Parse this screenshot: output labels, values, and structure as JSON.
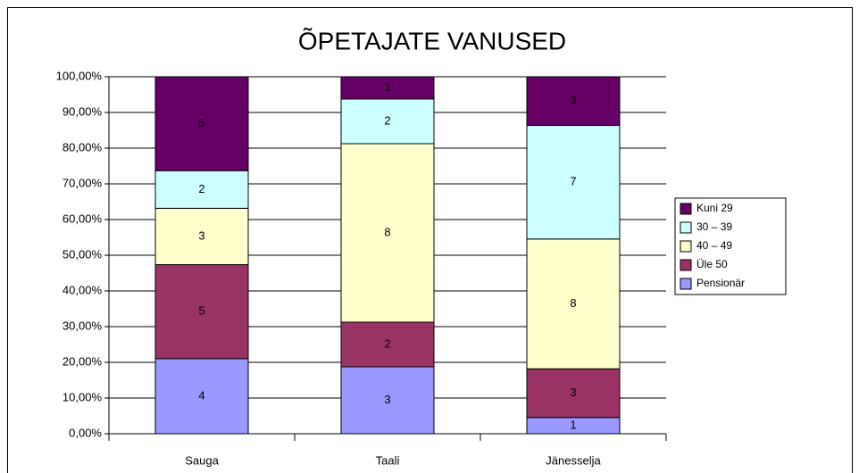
{
  "chart_data": {
    "type": "stacked_percent_bar",
    "title": "ÕPETAJATE VANUSED",
    "categories": [
      "Sauga",
      "Taali",
      "Jänesselja"
    ],
    "series": [
      {
        "name": "Pensionär",
        "color": "#9999ff",
        "values": [
          4,
          3,
          1
        ]
      },
      {
        "name": "Üle 50",
        "color": "#993366",
        "values": [
          5,
          2,
          3
        ]
      },
      {
        "name": "40 – 49",
        "color": "#ffffcc",
        "values": [
          3,
          8,
          8
        ]
      },
      {
        "name": "30 – 39",
        "color": "#ccffff",
        "values": [
          2,
          2,
          7
        ]
      },
      {
        "name": "Kuni 29",
        "color": "#660066",
        "values": [
          5,
          1,
          3
        ]
      }
    ],
    "ylim": [
      0,
      100
    ],
    "yticks": [
      {
        "value": 0,
        "label": "0,00%"
      },
      {
        "value": 10,
        "label": "10,00%"
      },
      {
        "value": 20,
        "label": "20,00%"
      },
      {
        "value": 30,
        "label": "30,00%"
      },
      {
        "value": 40,
        "label": "40,00%"
      },
      {
        "value": 50,
        "label": "50,00%"
      },
      {
        "value": 60,
        "label": "60,00%"
      },
      {
        "value": 70,
        "label": "70,00%"
      },
      {
        "value": 80,
        "label": "80,00%"
      },
      {
        "value": 90,
        "label": "90,00%"
      },
      {
        "value": 100,
        "label": "100,00%"
      }
    ],
    "grid": true,
    "legend": "right"
  }
}
